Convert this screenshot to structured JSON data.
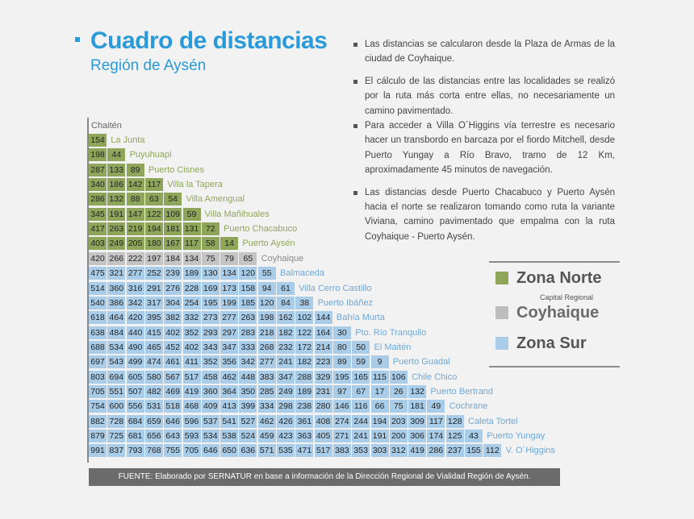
{
  "header": {
    "title": "Cuadro de distancias",
    "subtitle": "Región de Aysén"
  },
  "notes": [
    "Las distancias se calcularon desde la Plaza de Armas de la ciudad de Coyhaique.",
    "El cálculo de las distancias entre las localidades se realizó por la ruta más corta entre ellas, no necesariamente un camino pavimentado.",
    "Para acceder a Villa O´Higgins vía terrestre es necesario hacer un transbordo en barcaza por el fiordo Mitchell, desde Puerto Yungay a Río Bravo, tramo de 12 Km, aproximadamente 45 minutos de navegación.",
    "Las distancias desde Puerto Chacabuco y Puerto Aysén hacia el norte se realizaron tomando como ruta la variante Viviana, camino pavimentado que empalma con la ruta Coyhaique - Puerto Aysén."
  ],
  "legend": {
    "items": [
      {
        "label": "Zona Norte",
        "color": "#8fa65a",
        "text_color": "#555555"
      },
      {
        "label": "Coyhaique",
        "color": "#bdbdbd",
        "text_color": "#6a6a6a"
      },
      {
        "label": "Zona Sur",
        "color": "#a9cde9",
        "text_color": "#555555"
      }
    ],
    "caption": "Capital Regional"
  },
  "colors": {
    "norte": "#8fa65a",
    "coyhaique": "#c4c4c4",
    "sur": "#a9cde9",
    "norte_label": "#8fa65a",
    "coyhaique_label": "#8a8a8a",
    "sur_label": "#6ea8d8",
    "chaiten_label": "#666666"
  },
  "table": {
    "header_place": "Chaitén",
    "rows": [
      {
        "place": "La Junta",
        "zone": "norte",
        "values": [
          "154"
        ]
      },
      {
        "place": "Puyuhuapi",
        "zone": "norte",
        "values": [
          "198",
          "44"
        ]
      },
      {
        "place": "Puerto Cisnes",
        "zone": "norte",
        "values": [
          "287",
          "133",
          "89"
        ]
      },
      {
        "place": "Villa la Tapera",
        "zone": "norte",
        "values": [
          "340",
          "186",
          "142",
          "117"
        ]
      },
      {
        "place": "Villa Amengual",
        "zone": "norte",
        "values": [
          "286",
          "132",
          "88",
          "63",
          "54"
        ]
      },
      {
        "place": "Villa Mañihuales",
        "zone": "norte",
        "values": [
          "345",
          "191",
          "147",
          "122",
          "109",
          "59"
        ]
      },
      {
        "place": "Puerto Chacabuco",
        "zone": "norte",
        "values": [
          "417",
          "263",
          "219",
          "194",
          "181",
          "131",
          "72"
        ]
      },
      {
        "place": "Puerto Aysén",
        "zone": "norte",
        "values": [
          "403",
          "249",
          "205",
          "180",
          "167",
          "117",
          "58",
          "14"
        ]
      },
      {
        "place": "Coyhaique",
        "zone": "coyhaique",
        "values": [
          "420",
          "266",
          "222",
          "197",
          "184",
          "134",
          "75",
          "79",
          "65"
        ]
      },
      {
        "place": "Balmaceda",
        "zone": "sur",
        "values": [
          "475",
          "321",
          "277",
          "252",
          "239",
          "189",
          "130",
          "134",
          "120",
          "55"
        ]
      },
      {
        "place": "Villa Cerro Castillo",
        "zone": "sur",
        "values": [
          "514",
          "360",
          "316",
          "291",
          "276",
          "228",
          "169",
          "173",
          "158",
          "94",
          "61"
        ]
      },
      {
        "place": "Puerto Ibáñez",
        "zone": "sur",
        "values": [
          "540",
          "386",
          "342",
          "317",
          "304",
          "254",
          "195",
          "199",
          "185",
          "120",
          "84",
          "38"
        ]
      },
      {
        "place": "Bahía Murta",
        "zone": "sur",
        "values": [
          "618",
          "464",
          "420",
          "395",
          "382",
          "332",
          "273",
          "277",
          "263",
          "198",
          "162",
          "102",
          "144"
        ]
      },
      {
        "place": "Pto. Río Tranquilo",
        "zone": "sur",
        "values": [
          "638",
          "484",
          "440",
          "415",
          "402",
          "352",
          "293",
          "297",
          "283",
          "218",
          "182",
          "122",
          "164",
          "30"
        ]
      },
      {
        "place": "El Maitén",
        "zone": "sur",
        "values": [
          "688",
          "534",
          "490",
          "465",
          "452",
          "402",
          "343",
          "347",
          "333",
          "268",
          "232",
          "172",
          "214",
          "80",
          "50"
        ]
      },
      {
        "place": "Puerto Guadal",
        "zone": "sur",
        "values": [
          "697",
          "543",
          "499",
          "474",
          "461",
          "411",
          "352",
          "356",
          "342",
          "277",
          "241",
          "182",
          "223",
          "89",
          "59",
          "9"
        ]
      },
      {
        "place": "Chile Chico",
        "zone": "sur",
        "values": [
          "803",
          "694",
          "605",
          "580",
          "567",
          "517",
          "458",
          "462",
          "448",
          "383",
          "347",
          "288",
          "329",
          "195",
          "165",
          "115",
          "106"
        ]
      },
      {
        "place": "Puerto Bertrand",
        "zone": "sur",
        "values": [
          "705",
          "551",
          "507",
          "482",
          "469",
          "419",
          "360",
          "364",
          "350",
          "285",
          "249",
          "189",
          "231",
          "97",
          "67",
          "17",
          "26",
          "132"
        ]
      },
      {
        "place": "Cochrane",
        "zone": "sur",
        "values": [
          "754",
          "600",
          "556",
          "531",
          "518",
          "468",
          "409",
          "413",
          "399",
          "334",
          "298",
          "238",
          "280",
          "146",
          "116",
          "66",
          "75",
          "181",
          "49"
        ]
      },
      {
        "place": "Caleta Tortel",
        "zone": "sur",
        "values": [
          "882",
          "728",
          "684",
          "659",
          "646",
          "596",
          "537",
          "541",
          "527",
          "462",
          "426",
          "361",
          "408",
          "274",
          "244",
          "194",
          "203",
          "309",
          "117",
          "128"
        ]
      },
      {
        "place": "Puerto Yungay",
        "zone": "sur",
        "values": [
          "879",
          "725",
          "681",
          "656",
          "643",
          "593",
          "534",
          "538",
          "524",
          "459",
          "423",
          "363",
          "405",
          "271",
          "241",
          "191",
          "200",
          "306",
          "174",
          "125",
          "43"
        ]
      },
      {
        "place": "V. O´Higgins",
        "zone": "sur",
        "values": [
          "991",
          "837",
          "793",
          "768",
          "755",
          "705",
          "646",
          "650",
          "636",
          "571",
          "535",
          "471",
          "517",
          "383",
          "353",
          "303",
          "312",
          "419",
          "286",
          "237",
          "155",
          "112"
        ]
      }
    ]
  },
  "footer": {
    "source": "FUENTE: Elaborado  por SERNATUR en base a información de la Dirección Regional de Vialidad Región de Aysén."
  }
}
